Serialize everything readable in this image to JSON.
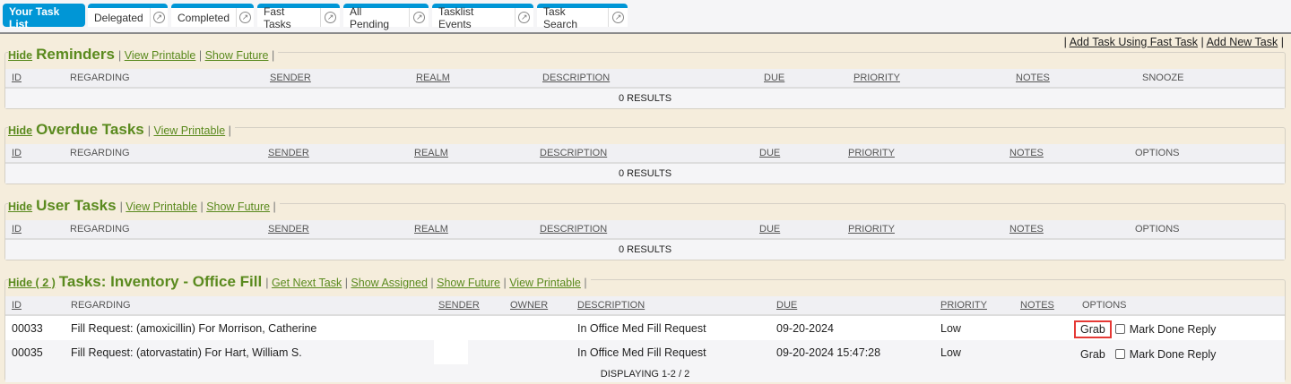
{
  "tabs": [
    {
      "label": "Your Task List",
      "active": true
    },
    {
      "label": "Delegated"
    },
    {
      "label": "Completed"
    },
    {
      "label": "Fast Tasks"
    },
    {
      "label": "All Pending"
    },
    {
      "label": "Tasklist Events"
    },
    {
      "label": "Task Search"
    }
  ],
  "top_links": {
    "sep": "|",
    "fast_task": "Add Task Using Fast Task",
    "new_task": "Add New Task"
  },
  "sections": [
    {
      "hide": "Hide",
      "title": "Reminders",
      "links": [
        "View Printable",
        "Show Future"
      ],
      "columns": [
        "ID",
        "REGARDING",
        "SENDER",
        "REALM",
        "DESCRIPTION",
        "DUE",
        "PRIORITY",
        "NOTES",
        "SNOOZE"
      ],
      "underlined": [
        1,
        0,
        1,
        1,
        1,
        1,
        1,
        1,
        0
      ],
      "result": "0 RESULTS"
    },
    {
      "hide": "Hide",
      "title": "Overdue Tasks",
      "links": [
        "View Printable"
      ],
      "columns": [
        "ID",
        "REGARDING",
        "SENDER",
        "REALM",
        "DESCRIPTION",
        "DUE",
        "PRIORITY",
        "NOTES",
        "OPTIONS"
      ],
      "underlined": [
        1,
        0,
        1,
        1,
        1,
        1,
        1,
        1,
        0
      ],
      "result": "0 RESULTS"
    },
    {
      "hide": "Hide",
      "title": "User Tasks",
      "links": [
        "View Printable",
        "Show Future"
      ],
      "columns": [
        "ID",
        "REGARDING",
        "SENDER",
        "REALM",
        "DESCRIPTION",
        "DUE",
        "PRIORITY",
        "NOTES",
        "OPTIONS"
      ],
      "underlined": [
        1,
        0,
        1,
        1,
        1,
        1,
        1,
        1,
        0
      ],
      "result": "0 RESULTS"
    },
    {
      "hide": "Hide ( 2 )",
      "title": "Tasks: Inventory - Office Fill",
      "links": [
        "Get Next Task",
        "Show Assigned",
        "Show Future",
        "View Printable"
      ],
      "columns": [
        "ID",
        "REGARDING",
        "SENDER",
        "OWNER",
        "DESCRIPTION",
        "DUE",
        "PRIORITY",
        "NOTES",
        "OPTIONS"
      ],
      "underlined": [
        1,
        0,
        1,
        1,
        1,
        1,
        1,
        1,
        0
      ],
      "rows": [
        {
          "id": "00033",
          "regarding": "Fill Request: (amoxicillin) For Morrison, Catherine",
          "sender": "",
          "owner": "",
          "description": "In Office Med Fill Request",
          "due": "09-20-2024",
          "priority": "Low",
          "notes": "",
          "grab": "Grab",
          "options": "Mark Done Reply",
          "highlighted": true
        },
        {
          "id": "00035",
          "regarding": "Fill Request: (atorvastatin) For Hart, William S.",
          "sender": "",
          "owner": "",
          "description": "In Office Med Fill Request",
          "due": "09-20-2024 15:47:28",
          "priority": "Low",
          "notes": "",
          "grab": "Grab",
          "options": "Mark Done Reply"
        }
      ],
      "result": "DISPLAYING 1-2 / 2"
    }
  ],
  "colors": {
    "tab_blue": "#0096d6",
    "section_green": "#5a8a1e",
    "page_bg": "#f5eddc",
    "highlight": "#e53935"
  }
}
